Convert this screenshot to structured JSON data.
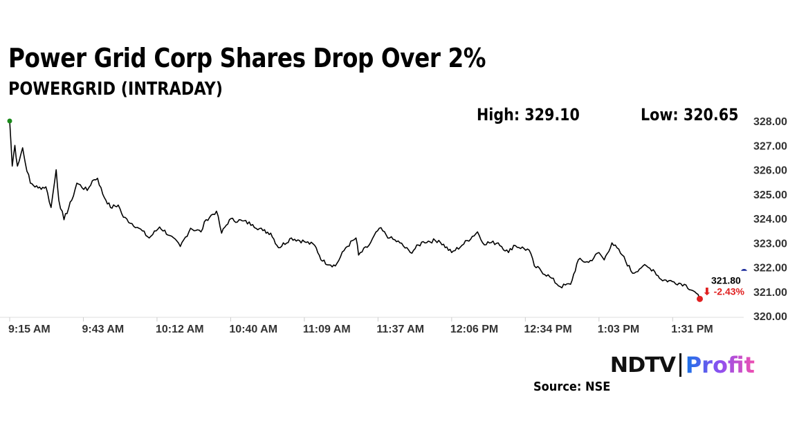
{
  "header": {
    "title": "Power Grid Corp Shares Drop Over 2%",
    "subtitle": "POWERGRID (INTRADAY)",
    "high": "High: 329.10",
    "low": "Low: 320.65"
  },
  "chart_data": {
    "type": "line",
    "title": "Power Grid Corp Shares Drop Over 2%",
    "subtitle": "POWERGRID (INTRADAY)",
    "x_unit": "minutes since 9:15 AM",
    "xlim": [
      0,
      284
    ],
    "ylim": [
      320,
      328
    ],
    "grid": false,
    "yticks": [
      320,
      321,
      322,
      323,
      324,
      325,
      326,
      327,
      328
    ],
    "ytick_labels": [
      "320.00",
      "321.00",
      "322.00",
      "323.00",
      "324.00",
      "325.00",
      "326.00",
      "327.00",
      "328.00"
    ],
    "xticks": [
      0,
      28.5,
      57,
      85.5,
      114,
      142.5,
      171,
      199.5,
      228,
      256.5
    ],
    "xtick_labels": [
      "9:15 AM",
      "9:43 AM",
      "10:12 AM",
      "10:40 AM",
      "11:09 AM",
      "11:37 AM",
      "12:06 PM",
      "12:34 PM",
      "1:03 PM",
      "1:31 PM"
    ],
    "x": [
      0,
      1,
      2,
      3,
      5,
      6,
      8,
      11,
      14,
      16,
      18,
      19,
      21,
      24,
      26,
      30,
      32,
      34,
      36,
      39,
      42,
      44,
      50,
      54,
      58,
      62,
      66,
      70,
      74,
      76,
      80,
      82,
      85,
      90,
      94,
      98,
      101,
      104,
      109,
      114,
      118,
      121,
      126,
      130,
      134,
      135,
      139,
      143,
      147,
      151,
      155,
      160,
      166,
      171,
      175,
      181,
      183,
      189,
      193,
      195,
      201,
      203,
      209,
      213,
      217,
      220,
      224,
      228,
      230,
      233,
      237,
      241,
      245,
      249,
      252,
      257,
      261,
      265,
      267
    ],
    "y": [
      328.0,
      326.15,
      327.0,
      326.15,
      326.9,
      326.3,
      325.45,
      325.25,
      325.3,
      324.45,
      326.0,
      324.75,
      323.95,
      324.75,
      325.45,
      325.15,
      325.55,
      325.65,
      325.0,
      324.45,
      324.55,
      324.05,
      323.6,
      323.2,
      323.65,
      323.3,
      322.85,
      323.6,
      323.45,
      323.95,
      324.3,
      323.4,
      323.95,
      323.9,
      323.75,
      323.5,
      323.4,
      322.8,
      323.2,
      323.05,
      322.9,
      322.25,
      322.05,
      322.8,
      323.2,
      322.5,
      322.9,
      323.6,
      323.2,
      323.0,
      322.6,
      323.05,
      323.1,
      322.6,
      322.9,
      323.45,
      323.0,
      323.0,
      322.6,
      322.9,
      322.7,
      322.05,
      321.6,
      321.2,
      321.3,
      322.3,
      322.2,
      322.6,
      322.3,
      323.0,
      322.5,
      321.75,
      322.05,
      321.9,
      321.5,
      321.4,
      321.3,
      321.0,
      320.7
    ],
    "last_price_label": "321.80",
    "change_label": "⬇ -2.43%",
    "reference_marker_value": 321.85,
    "colors": {
      "line": "#000000",
      "start": "#1a8a1a",
      "end": "#e02020",
      "reference": "#1a2a9a",
      "change": "#e02020"
    }
  },
  "footer": {
    "logo_ndtv": "NDTV",
    "logo_profit": "Profit",
    "source": "Source: NSE"
  }
}
